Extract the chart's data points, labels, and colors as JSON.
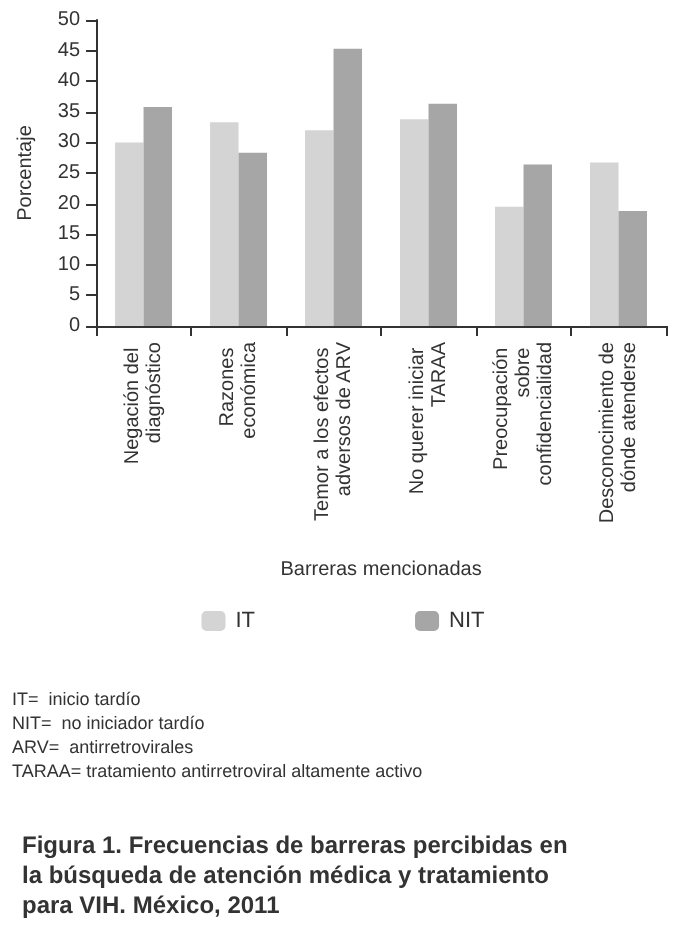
{
  "chart_data": {
    "type": "bar",
    "title": "Figura 1. Frecuencias de barreras percibidas en la búsqueda de atención médica y tratamiento para VIH. México, 2011",
    "xlabel": "Barreras mencionadas",
    "ylabel": "Porcentaje",
    "categories": [
      "Negación del diagnóstico",
      "Razones económica",
      "Temor a los efectos adversos de ARV",
      "No querer iniciar TARAA",
      "Preocupación sobre confidencialidad",
      "Desconocimiento de dónde atenderse"
    ],
    "series": [
      {
        "name": "IT",
        "color": "#d4d4d4",
        "values": [
          30,
          33.3,
          32,
          33.8,
          19.5,
          26.7
        ]
      },
      {
        "name": "NIT",
        "color": "#a6a6a6",
        "values": [
          35.8,
          28.3,
          45.3,
          36.3,
          26.4,
          18.8
        ]
      }
    ],
    "ylim": [
      0,
      50
    ],
    "yticks": [
      0,
      5,
      10,
      15,
      20,
      25,
      30,
      35,
      40,
      45,
      50
    ],
    "grid": false,
    "legend": "bottom",
    "annotations": [
      "IT=  inicio tardío",
      "NIT=  no iniciador tardío",
      "ARV=  antirretrovirales",
      "TARAA= tratamiento antirretroviral altamente activo"
    ]
  }
}
